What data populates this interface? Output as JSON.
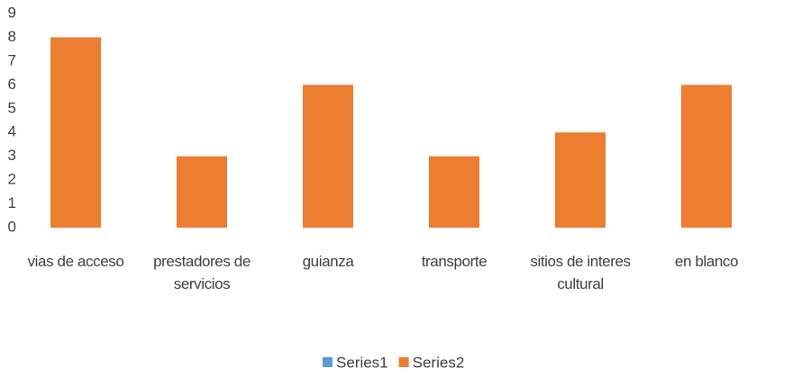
{
  "chart_data": {
    "type": "bar",
    "categories": [
      "vias de acceso",
      "prestadores de servicios",
      "guianza",
      "transporte",
      "sitios de interes cultural",
      "en blanco"
    ],
    "series": [
      {
        "name": "Series1",
        "color": "#5b9bd5",
        "values": [
          null,
          null,
          null,
          null,
          null,
          null
        ]
      },
      {
        "name": "Series2",
        "color": "#ed7d31",
        "values": [
          8,
          3,
          6,
          3,
          4,
          6
        ]
      }
    ],
    "ylim": [
      0,
      9
    ],
    "yticks": [
      0,
      1,
      2,
      3,
      4,
      5,
      6,
      7,
      8,
      9
    ],
    "grid": false,
    "legend": "bottom"
  }
}
